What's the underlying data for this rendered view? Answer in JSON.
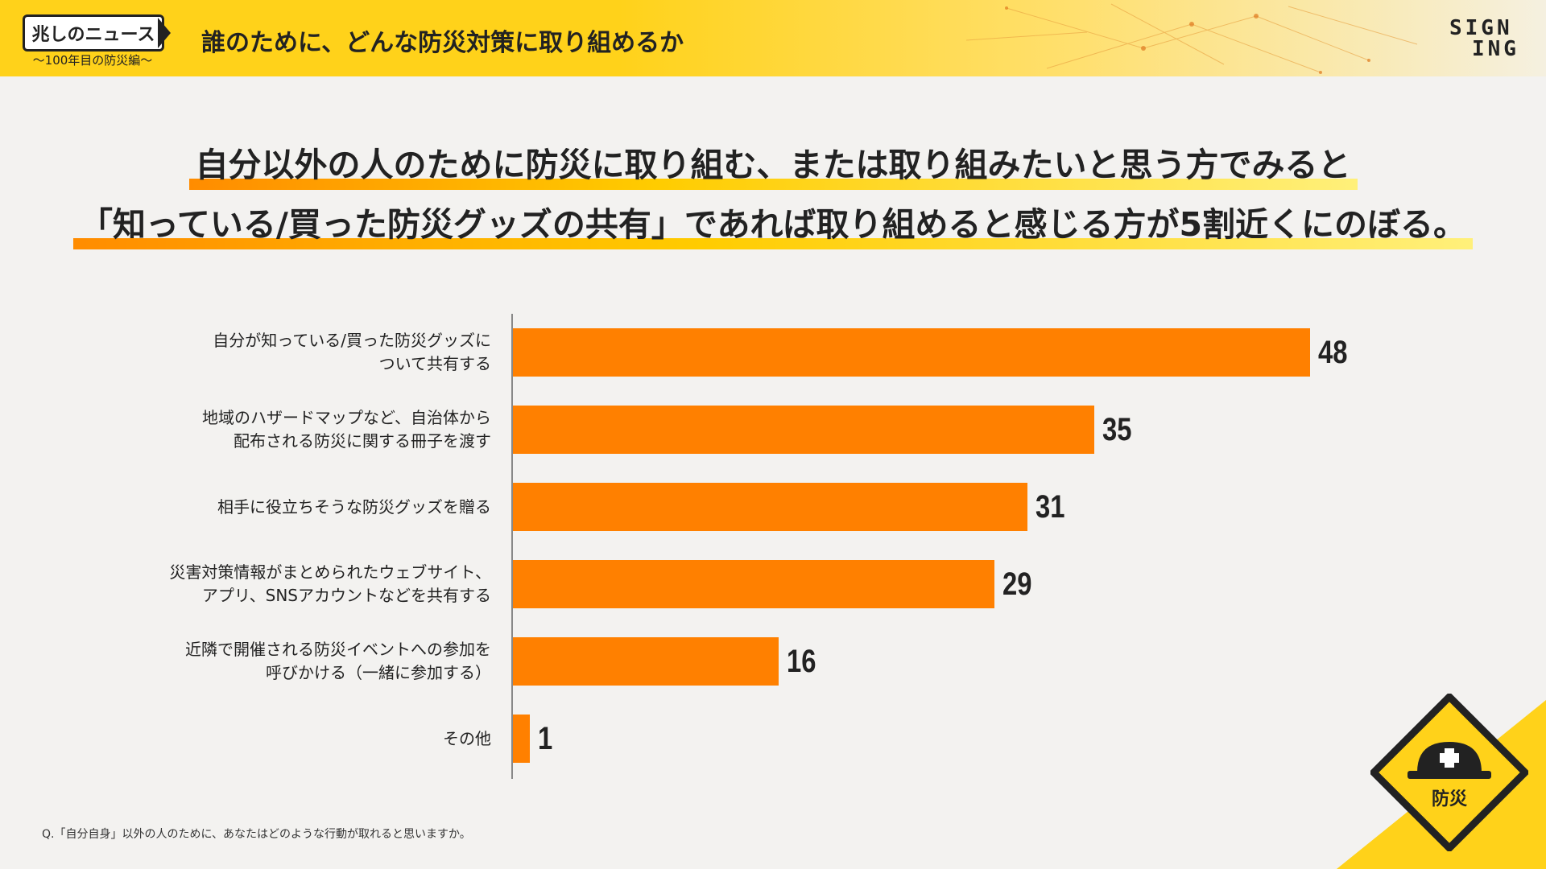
{
  "header": {
    "logo_text": "兆しのニュース",
    "logo_sub": "〜100年目の防災編〜",
    "title": "誰のために、どんな防災対策に取り組めるか",
    "brand_line1": "SIGN",
    "brand_line2": "ING"
  },
  "headline": {
    "line1": "自分以外の人のために防災に取り組む、または取り組みたいと思う方でみると",
    "line2": "「知っている/買った防災グッズの共有」であれば取り組めると感じる方が5割近くにのぼる。"
  },
  "chart_data": {
    "type": "bar",
    "orientation": "horizontal",
    "categories": [
      "自分が知っている/買った防災グッズに\nついて共有する",
      "地域のハザードマップなど、自治体から\n配布される防災に関する冊子を渡す",
      "相手に役立ちそうな防災グッズを贈る",
      "災害対策情報がまとめられたウェブサイト、\nアプリ、SNSアカウントなどを共有する",
      "近隣で開催される防災イベントへの参加を\n呼びかける（一緒に参加する）",
      "その他"
    ],
    "values": [
      48,
      35,
      31,
      29,
      16,
      1
    ],
    "bar_color": "#ff8000",
    "value_labels": [
      "48",
      "35",
      "31",
      "29",
      "16",
      "1"
    ]
  },
  "footnote": "Q.「自分自身」以外の人のために、あなたはどのような行動が取れると思いますか。",
  "sign": {
    "label": "防災",
    "icon": "helmet-icon"
  },
  "colors": {
    "accent": "#ffd21a",
    "bar": "#ff8000",
    "sign_border": "#222222"
  }
}
